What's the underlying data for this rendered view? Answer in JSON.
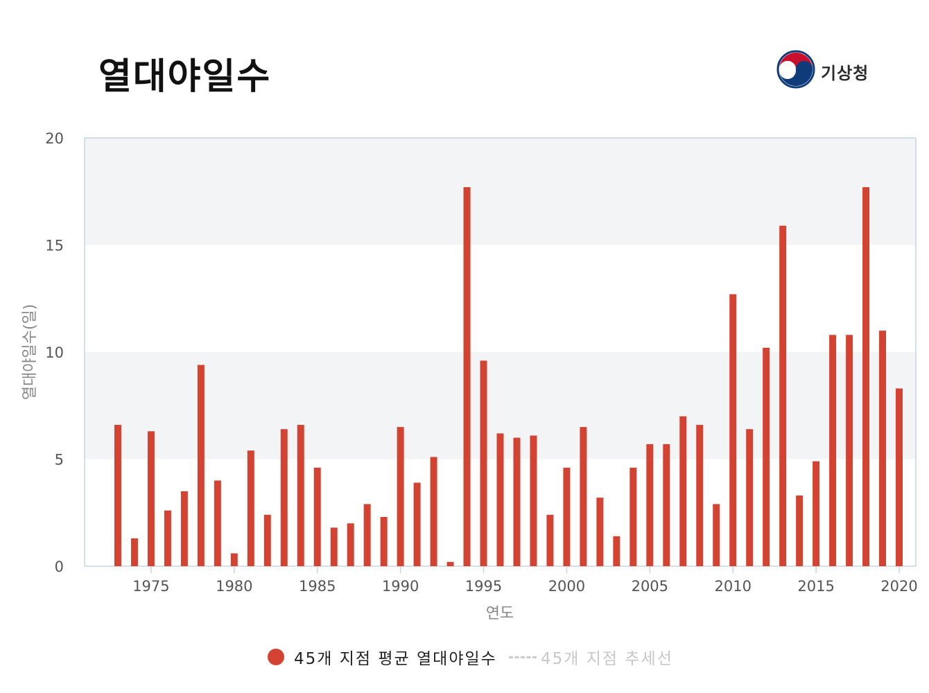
{
  "header": {
    "title": "열대야일수",
    "brand_name": "기상청",
    "brand_logo_icon": "taegeuk-logo-icon"
  },
  "colors": {
    "bar": "#d44332",
    "band": "#f3f4f6",
    "axis": "#c9d3e0",
    "tick_text": "#555555",
    "axis_title": "#888888",
    "trend_legend": "#c8c8c8"
  },
  "legend": {
    "items": [
      {
        "label": "45개 지점 평균 열대야일수",
        "symbol": "dot"
      },
      {
        "label": "45개 지점 추세선",
        "symbol": "dashed-line"
      }
    ]
  },
  "chart_data": {
    "type": "bar",
    "title": "",
    "xlabel": "연도",
    "ylabel": "열대야일수(일)",
    "ylim": [
      0,
      20
    ],
    "yticks": [
      0,
      5,
      10,
      15,
      20
    ],
    "xticks": [
      1975,
      1980,
      1985,
      1990,
      1995,
      2000,
      2005,
      2010,
      2015,
      2020
    ],
    "bands": [
      [
        5,
        10
      ],
      [
        15,
        20
      ]
    ],
    "grid": false,
    "legend_position": "bottom-center",
    "series": [
      {
        "name": "45개 지점 평균 열대야일수",
        "x": [
          1973,
          1974,
          1975,
          1976,
          1977,
          1978,
          1979,
          1980,
          1981,
          1982,
          1983,
          1984,
          1985,
          1986,
          1987,
          1988,
          1989,
          1990,
          1991,
          1992,
          1993,
          1994,
          1995,
          1996,
          1997,
          1998,
          1999,
          2000,
          2001,
          2002,
          2003,
          2004,
          2005,
          2006,
          2007,
          2008,
          2009,
          2010,
          2011,
          2012,
          2013,
          2014,
          2015,
          2016,
          2017,
          2018,
          2019,
          2020
        ],
        "values": [
          6.6,
          1.3,
          6.3,
          2.6,
          3.5,
          9.4,
          4.0,
          0.6,
          5.4,
          2.4,
          6.4,
          6.6,
          4.6,
          1.8,
          2.0,
          2.9,
          2.3,
          6.5,
          3.9,
          5.1,
          0.2,
          17.7,
          9.6,
          6.2,
          6.0,
          6.1,
          2.4,
          4.6,
          6.5,
          3.2,
          1.4,
          4.6,
          5.7,
          5.7,
          7.0,
          6.6,
          2.9,
          12.7,
          6.4,
          10.2,
          15.9,
          3.3,
          4.9,
          10.8,
          10.8,
          17.7,
          11.0,
          8.3
        ]
      }
    ]
  }
}
